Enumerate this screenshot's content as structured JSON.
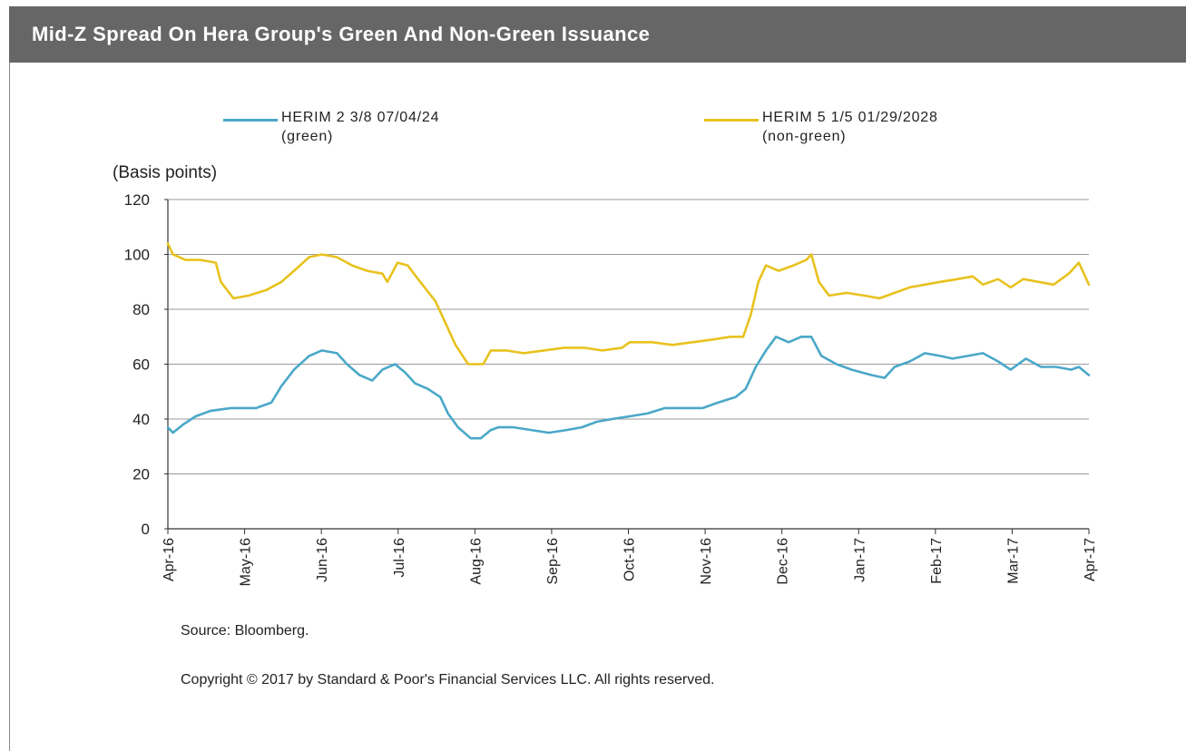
{
  "header": {
    "title": "Mid-Z Spread On Hera Group's Green And Non-Green Issuance"
  },
  "legend": {
    "green_line1": "HERIM 2 3/8 07/04/24",
    "green_line2": "(green)",
    "nongreen_line1": "HERIM 5 1/5 01/29/2028",
    "nongreen_line2": "(non-green)"
  },
  "footer": {
    "source": "Source: Bloomberg.",
    "copyright": "Copyright © 2017 by Standard & Poor's Financial Services LLC. All rights reserved."
  },
  "colors": {
    "green_series": "#4aa8c8",
    "nongreen_series": "#e8c21e",
    "grid": "#9a9a9a",
    "axis": "#333333"
  },
  "chart_data": {
    "type": "line",
    "ylabel": "(Basis points)",
    "ylim": [
      0,
      120
    ],
    "yticks": [
      0,
      20,
      40,
      60,
      80,
      100,
      120
    ],
    "xlim": [
      "2016-04-01",
      "2017-04-01"
    ],
    "xtick_labels": [
      "Apr-16",
      "May-16",
      "Jun-16",
      "Jul-16",
      "Aug-16",
      "Sep-16",
      "Oct-16",
      "Nov-16",
      "Dec-16",
      "Jan-17",
      "Feb-17",
      "Mar-17",
      "Apr-17"
    ],
    "grid": "horizontal",
    "legend_position": "top",
    "series": [
      {
        "name": "HERIM 2 3/8 07/04/24 (green)",
        "color": "#4aa8c8",
        "points": [
          [
            "2016-04-01",
            37
          ],
          [
            "2016-04-03",
            35
          ],
          [
            "2016-04-07",
            38
          ],
          [
            "2016-04-12",
            41
          ],
          [
            "2016-04-18",
            43
          ],
          [
            "2016-04-26",
            44
          ],
          [
            "2016-05-06",
            44
          ],
          [
            "2016-05-12",
            46
          ],
          [
            "2016-05-16",
            52
          ],
          [
            "2016-05-21",
            58
          ],
          [
            "2016-05-27",
            63
          ],
          [
            "2016-06-01",
            65
          ],
          [
            "2016-06-07",
            64
          ],
          [
            "2016-06-11",
            60
          ],
          [
            "2016-06-16",
            56
          ],
          [
            "2016-06-21",
            54
          ],
          [
            "2016-06-25",
            58
          ],
          [
            "2016-06-30",
            60
          ],
          [
            "2016-07-04",
            57
          ],
          [
            "2016-07-08",
            53
          ],
          [
            "2016-07-13",
            51
          ],
          [
            "2016-07-18",
            48
          ],
          [
            "2016-07-21",
            42
          ],
          [
            "2016-07-25",
            37
          ],
          [
            "2016-07-30",
            33
          ],
          [
            "2016-08-03",
            33
          ],
          [
            "2016-08-07",
            36
          ],
          [
            "2016-08-10",
            37
          ],
          [
            "2016-08-16",
            37
          ],
          [
            "2016-08-23",
            36
          ],
          [
            "2016-08-30",
            35
          ],
          [
            "2016-09-06",
            36
          ],
          [
            "2016-09-12",
            37
          ],
          [
            "2016-09-18",
            39
          ],
          [
            "2016-09-24",
            40
          ],
          [
            "2016-10-01",
            41
          ],
          [
            "2016-10-08",
            42
          ],
          [
            "2016-10-15",
            44
          ],
          [
            "2016-10-22",
            44
          ],
          [
            "2016-10-30",
            44
          ],
          [
            "2016-11-05",
            46
          ],
          [
            "2016-11-12",
            48
          ],
          [
            "2016-11-16",
            51
          ],
          [
            "2016-11-20",
            59
          ],
          [
            "2016-11-24",
            65
          ],
          [
            "2016-11-28",
            70
          ],
          [
            "2016-12-03",
            68
          ],
          [
            "2016-12-08",
            70
          ],
          [
            "2016-12-12",
            70
          ],
          [
            "2016-12-16",
            63
          ],
          [
            "2016-12-22",
            60
          ],
          [
            "2016-12-28",
            58
          ],
          [
            "2017-01-05",
            56
          ],
          [
            "2017-01-10",
            55
          ],
          [
            "2017-01-14",
            59
          ],
          [
            "2017-01-20",
            61
          ],
          [
            "2017-01-26",
            64
          ],
          [
            "2017-02-01",
            63
          ],
          [
            "2017-02-06",
            62
          ],
          [
            "2017-02-12",
            63
          ],
          [
            "2017-02-18",
            64
          ],
          [
            "2017-02-24",
            61
          ],
          [
            "2017-03-01",
            58
          ],
          [
            "2017-03-07",
            62
          ],
          [
            "2017-03-13",
            59
          ],
          [
            "2017-03-19",
            59
          ],
          [
            "2017-03-25",
            58
          ],
          [
            "2017-03-28",
            59
          ],
          [
            "2017-04-01",
            56
          ]
        ]
      },
      {
        "name": "HERIM 5 1/5 01/29/2028 (non-green)",
        "color": "#e8c21e",
        "points": [
          [
            "2016-04-01",
            104
          ],
          [
            "2016-04-03",
            100
          ],
          [
            "2016-04-08",
            98
          ],
          [
            "2016-04-14",
            98
          ],
          [
            "2016-04-20",
            97
          ],
          [
            "2016-04-22",
            90
          ],
          [
            "2016-04-27",
            84
          ],
          [
            "2016-05-03",
            85
          ],
          [
            "2016-05-10",
            87
          ],
          [
            "2016-05-16",
            90
          ],
          [
            "2016-05-21",
            94
          ],
          [
            "2016-05-27",
            99
          ],
          [
            "2016-06-01",
            100
          ],
          [
            "2016-06-07",
            99
          ],
          [
            "2016-06-13",
            96
          ],
          [
            "2016-06-19",
            94
          ],
          [
            "2016-06-25",
            93
          ],
          [
            "2016-06-27",
            90
          ],
          [
            "2016-07-01",
            97
          ],
          [
            "2016-07-05",
            96
          ],
          [
            "2016-07-10",
            90
          ],
          [
            "2016-07-16",
            83
          ],
          [
            "2016-07-20",
            75
          ],
          [
            "2016-07-24",
            67
          ],
          [
            "2016-07-29",
            60
          ],
          [
            "2016-08-04",
            60
          ],
          [
            "2016-08-07",
            65
          ],
          [
            "2016-08-13",
            65
          ],
          [
            "2016-08-20",
            64
          ],
          [
            "2016-08-28",
            65
          ],
          [
            "2016-09-05",
            66
          ],
          [
            "2016-09-13",
            66
          ],
          [
            "2016-09-20",
            65
          ],
          [
            "2016-09-28",
            66
          ],
          [
            "2016-10-01",
            68
          ],
          [
            "2016-10-10",
            68
          ],
          [
            "2016-10-18",
            67
          ],
          [
            "2016-10-26",
            68
          ],
          [
            "2016-11-03",
            69
          ],
          [
            "2016-11-10",
            70
          ],
          [
            "2016-11-15",
            70
          ],
          [
            "2016-11-18",
            78
          ],
          [
            "2016-11-21",
            90
          ],
          [
            "2016-11-24",
            96
          ],
          [
            "2016-11-29",
            94
          ],
          [
            "2016-12-05",
            96
          ],
          [
            "2016-12-10",
            98
          ],
          [
            "2016-12-12",
            100
          ],
          [
            "2016-12-15",
            90
          ],
          [
            "2016-12-19",
            85
          ],
          [
            "2016-12-26",
            86
          ],
          [
            "2017-01-02",
            85
          ],
          [
            "2017-01-08",
            84
          ],
          [
            "2017-01-14",
            86
          ],
          [
            "2017-01-20",
            88
          ],
          [
            "2017-01-26",
            89
          ],
          [
            "2017-02-01",
            90
          ],
          [
            "2017-02-08",
            91
          ],
          [
            "2017-02-14",
            92
          ],
          [
            "2017-02-18",
            89
          ],
          [
            "2017-02-24",
            91
          ],
          [
            "2017-03-01",
            88
          ],
          [
            "2017-03-06",
            91
          ],
          [
            "2017-03-12",
            90
          ],
          [
            "2017-03-18",
            89
          ],
          [
            "2017-03-24",
            93
          ],
          [
            "2017-03-28",
            97
          ],
          [
            "2017-04-01",
            89
          ]
        ]
      }
    ]
  }
}
